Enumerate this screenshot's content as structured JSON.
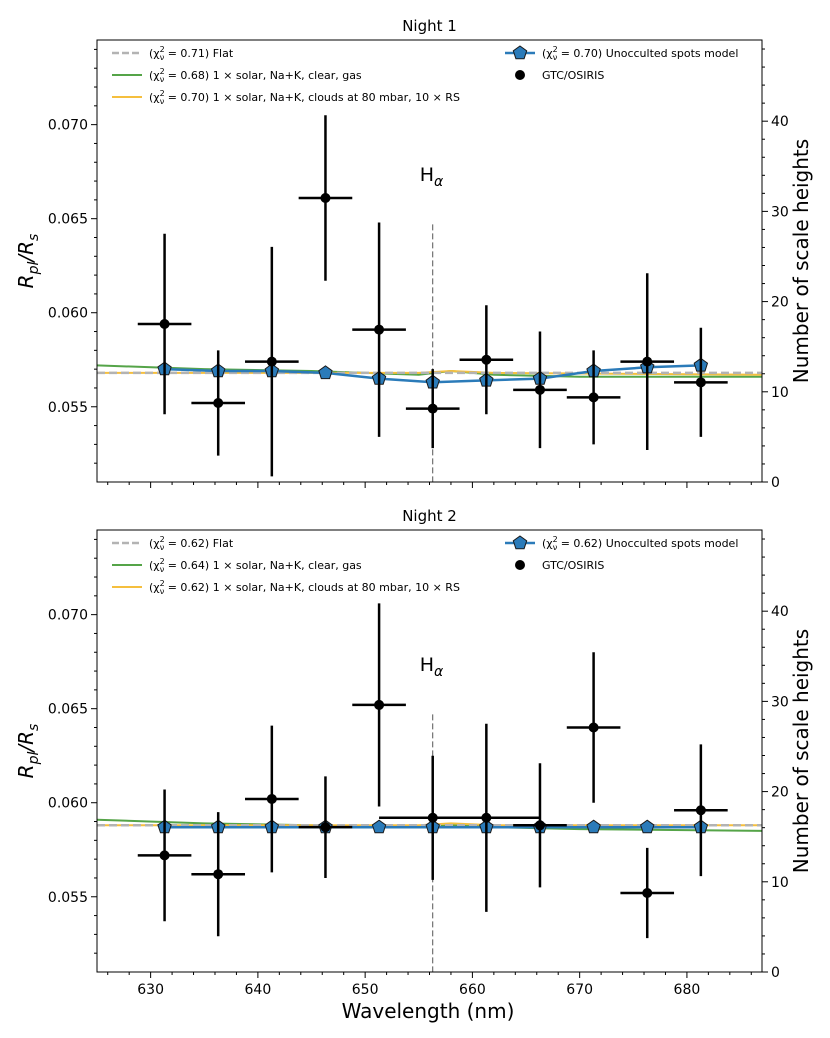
{
  "x_axis_label": "Wavelength (nm)",
  "y_axis_label_main": "R",
  "y_axis_label_sub1": "pl",
  "y_axis_label_mid": "/R",
  "y_axis_label_sub2": "s",
  "y2_axis_label": "Number of scale heights",
  "halpha_main": "H",
  "halpha_sub": "α",
  "colors": {
    "flat": "#b3b3b3",
    "clear": "#55a448",
    "clouds": "#f5bf3e",
    "spots_line": "#2b7bb9",
    "spots_marker": "#2b7bb9",
    "data": "#000000"
  },
  "chart_data": [
    {
      "type": "scatter",
      "title": "Night 1",
      "xlabel": "",
      "xlim": [
        625,
        687
      ],
      "ylim": [
        0.051,
        0.0745
      ],
      "y2lim": [
        0,
        49
      ],
      "x_ticks": [
        630,
        640,
        650,
        660,
        670,
        680
      ],
      "y_ticks": [
        0.055,
        0.06,
        0.065,
        0.07
      ],
      "y_tick_labels": [
        "0.055",
        "0.060",
        "0.065",
        "0.070"
      ],
      "y2_ticks": [
        0,
        10,
        20,
        30,
        40
      ],
      "halpha": 656.3,
      "legend_left": [
        {
          "key": "flat",
          "chi": "0.71",
          "text": ") Flat"
        },
        {
          "key": "clear",
          "chi": "0.68",
          "text": ") 1 × solar, Na+K, clear, gas"
        },
        {
          "key": "clouds",
          "chi": "0.70",
          "text": ") 1 × solar, Na+K, clouds at 80 mbar, 10 × RS"
        }
      ],
      "legend_right": [
        {
          "key": "spots",
          "chi": "0.70",
          "text": ") Unocculted spots model"
        },
        {
          "key": "data",
          "text": "GTC/OSIRIS"
        }
      ],
      "series": [
        {
          "name": "GTC/OSIRIS",
          "x": [
            631.3,
            636.3,
            641.3,
            646.3,
            651.3,
            656.3,
            661.3,
            666.3,
            671.3,
            676.3,
            681.3
          ],
          "y": [
            0.0594,
            0.0552,
            0.0574,
            0.0661,
            0.0591,
            0.0549,
            0.0575,
            0.0559,
            0.0555,
            0.0574,
            0.0563
          ],
          "yerr": [
            0.0048,
            0.0028,
            0.0061,
            0.0044,
            0.0057,
            0.0021,
            0.0029,
            0.0031,
            0.0025,
            0.0047,
            0.0029
          ],
          "xerr": 2.5
        },
        {
          "name": "Unocculted spots model",
          "x": [
            631.3,
            636.3,
            641.3,
            646.3,
            651.3,
            656.3,
            661.3,
            666.3,
            671.3,
            676.3,
            681.3
          ],
          "y": [
            0.057,
            0.0569,
            0.0569,
            0.0568,
            0.0565,
            0.0563,
            0.0564,
            0.0565,
            0.0569,
            0.0571,
            0.0572
          ]
        },
        {
          "name": "Flat",
          "y_const": 0.0568
        },
        {
          "name": "1 × solar, Na+K, clear, gas",
          "x": [
            625,
            635,
            645,
            650,
            655,
            658,
            662,
            670,
            687
          ],
          "y": [
            0.0572,
            0.057,
            0.0569,
            0.0568,
            0.0567,
            0.0569,
            0.0567,
            0.0566,
            0.0566
          ]
        },
        {
          "name": "1 × solar, Na+K, clouds at 80 mbar, 10 × RS",
          "x": [
            625,
            645,
            655,
            658,
            662,
            687
          ],
          "y": [
            0.0568,
            0.0568,
            0.0568,
            0.0569,
            0.0568,
            0.0567
          ]
        }
      ]
    },
    {
      "type": "scatter",
      "title": "Night 2",
      "xlabel": "Wavelength (nm)",
      "xlim": [
        625,
        687
      ],
      "ylim": [
        0.051,
        0.0745
      ],
      "y2lim": [
        0,
        49
      ],
      "x_ticks": [
        630,
        640,
        650,
        660,
        670,
        680
      ],
      "y_ticks": [
        0.055,
        0.06,
        0.065,
        0.07
      ],
      "y_tick_labels": [
        "0.055",
        "0.060",
        "0.065",
        "0.070"
      ],
      "y2_ticks": [
        0,
        10,
        20,
        30,
        40
      ],
      "halpha": 656.3,
      "legend_left": [
        {
          "key": "flat",
          "chi": "0.62",
          "text": ") Flat"
        },
        {
          "key": "clear",
          "chi": "0.64",
          "text": ") 1 × solar, Na+K, clear, gas"
        },
        {
          "key": "clouds",
          "chi": "0.62",
          "text": ") 1 × solar, Na+K, clouds at 80 mbar, 10 × RS"
        }
      ],
      "legend_right": [
        {
          "key": "spots",
          "chi": "0.62",
          "text": ") Unocculted spots model"
        },
        {
          "key": "data",
          "text": "GTC/OSIRIS"
        }
      ],
      "series": [
        {
          "name": "GTC/OSIRIS",
          "x": [
            631.3,
            636.3,
            641.3,
            646.3,
            651.3,
            656.3,
            661.3,
            666.3,
            671.3,
            676.3,
            681.3
          ],
          "y": [
            0.0572,
            0.0562,
            0.0602,
            0.0587,
            0.0652,
            0.0592,
            0.0592,
            0.0588,
            0.064,
            0.0552,
            0.0596
          ],
          "yerr": [
            0.0035,
            0.0033,
            0.0039,
            0.0027,
            0.0054,
            0.0033,
            0.005,
            0.0033,
            0.004,
            0.0024,
            0.0035
          ],
          "xerr": [
            2.5,
            2.5,
            2.5,
            2.5,
            2.5,
            5.0,
            5.0,
            2.5,
            2.5,
            2.5,
            2.5
          ]
        },
        {
          "name": "Unocculted spots model",
          "x": [
            631.3,
            636.3,
            641.3,
            646.3,
            651.3,
            656.3,
            661.3,
            666.3,
            671.3,
            676.3,
            681.3
          ],
          "y": [
            0.0587,
            0.0587,
            0.0587,
            0.0587,
            0.0587,
            0.0587,
            0.0587,
            0.0587,
            0.0587,
            0.0587,
            0.0587
          ]
        },
        {
          "name": "Flat",
          "y_const": 0.0588
        },
        {
          "name": "1 × solar, Na+K, clear, gas",
          "x": [
            625,
            635,
            645,
            650,
            655,
            658,
            662,
            670,
            687
          ],
          "y": [
            0.0591,
            0.0589,
            0.0588,
            0.0587,
            0.0587,
            0.0588,
            0.0587,
            0.0586,
            0.0585
          ]
        },
        {
          "name": "1 × solar, Na+K, clouds at 80 mbar, 10 × RS",
          "x": [
            625,
            645,
            655,
            658,
            662,
            687
          ],
          "y": [
            0.0588,
            0.0588,
            0.0588,
            0.0589,
            0.0588,
            0.0588
          ]
        }
      ]
    }
  ]
}
